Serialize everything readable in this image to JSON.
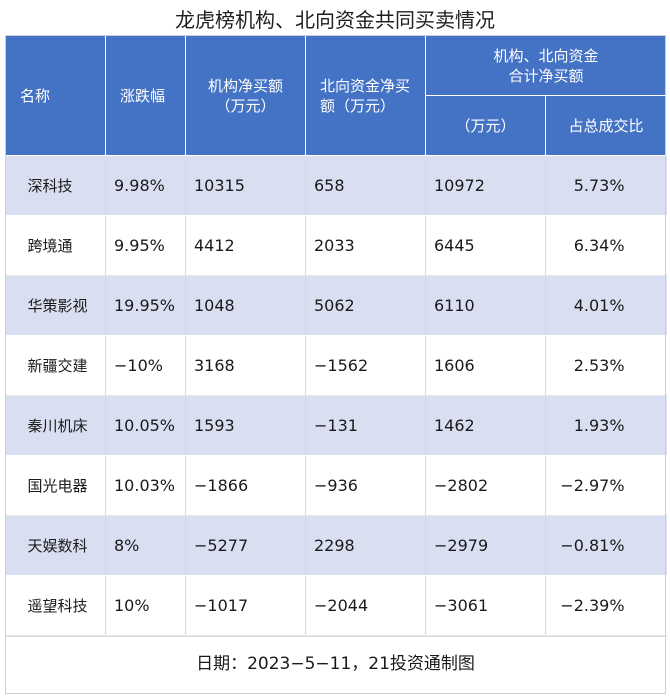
{
  "title": "龙虎榜机构、北向资金共同买卖情况",
  "headers": {
    "name": "名称",
    "change": "涨跌幅",
    "inst_line1": "机构净买额",
    "inst_line2": "（万元）",
    "north_line1": "北向资金净买",
    "north_line2": "额（万元）",
    "combined_line1": "机构、北向资金",
    "combined_line2": "合计净买额",
    "combined_sub1": "（万元）",
    "combined_sub2": "占总成交比"
  },
  "rows": [
    {
      "name": "深科技",
      "change": "9.98%",
      "inst": "10315",
      "north": "658",
      "total": "10972",
      "ratio": "5.73%"
    },
    {
      "name": "跨境通",
      "change": "9.95%",
      "inst": "4412",
      "north": "2033",
      "total": "6445",
      "ratio": "6.34%"
    },
    {
      "name": "华策影视",
      "change": "19.95%",
      "inst": "1048",
      "north": "5062",
      "total": "6110",
      "ratio": "4.01%"
    },
    {
      "name": "新疆交建",
      "change": "−10%",
      "inst": "3168",
      "north": "−1562",
      "total": "1606",
      "ratio": "2.53%"
    },
    {
      "name": "秦川机床",
      "change": "10.05%",
      "inst": "1593",
      "north": "−131",
      "total": "1462",
      "ratio": "1.93%"
    },
    {
      "name": "国光电器",
      "change": "10.03%",
      "inst": "−1866",
      "north": "−936",
      "total": "−2802",
      "ratio": "−2.97%"
    },
    {
      "name": "天娱数科",
      "change": "8%",
      "inst": "−5277",
      "north": "2298",
      "total": "−2979",
      "ratio": "−0.81%"
    },
    {
      "name": "遥望科技",
      "change": "10%",
      "inst": "−1017",
      "north": "−2044",
      "total": "−3061",
      "ratio": "−2.39%"
    }
  ],
  "footer": "日期：2023−5−11，21投资通制图",
  "colors": {
    "header_bg": "#4472c4",
    "band": "#d9dff1"
  }
}
